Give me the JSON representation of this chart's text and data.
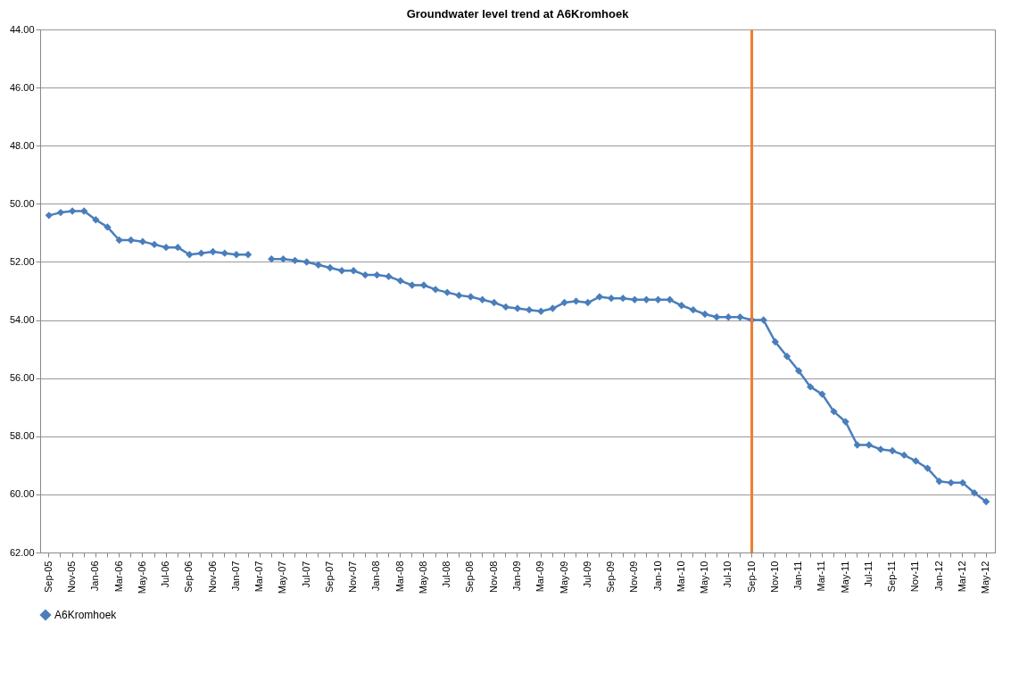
{
  "chart_data": {
    "type": "line",
    "title": "Groundwater level trend at A6Kromhoek",
    "categories": [
      "Sep-05",
      null,
      "Nov-05",
      null,
      "Jan-06",
      null,
      "Mar-06",
      null,
      "May-06",
      null,
      "Jul-06",
      null,
      "Sep-06",
      null,
      "Nov-06",
      null,
      "Jan-07",
      null,
      "Mar-07",
      null,
      "May-07",
      null,
      "Jul-07",
      null,
      "Sep-07",
      null,
      "Nov-07",
      null,
      "Jan-08",
      null,
      "Mar-08",
      null,
      "May-08",
      null,
      "Jul-08",
      null,
      "Sep-08",
      null,
      "Nov-08",
      null,
      "Jan-09",
      null,
      "Mar-09",
      null,
      "May-09",
      null,
      "Jul-09",
      null,
      "Sep-09",
      null,
      "Nov-09",
      null,
      "Jan-10",
      null,
      "Mar-10",
      null,
      "May-10",
      null,
      "Jul-10",
      null,
      "Sep-10",
      null,
      "Nov-10",
      null,
      "Jan-11",
      null,
      "Mar-11",
      null,
      "May-11",
      null,
      "Jul-11",
      null,
      "Sep-11",
      null,
      "Nov-11",
      null,
      "Jan-12",
      null,
      "Mar-12",
      null,
      "May-12"
    ],
    "series": [
      {
        "name": "A6Kromhoek",
        "color": "#4a7ebb",
        "values": [
          50.4,
          50.3,
          50.25,
          50.25,
          50.55,
          50.8,
          51.25,
          51.25,
          51.3,
          51.4,
          51.5,
          51.5,
          51.75,
          51.7,
          51.65,
          51.7,
          51.75,
          51.75,
          null,
          51.9,
          51.9,
          51.95,
          52.0,
          52.1,
          52.2,
          52.3,
          52.3,
          52.45,
          52.45,
          52.5,
          52.65,
          52.8,
          52.8,
          52.95,
          53.05,
          53.15,
          53.2,
          53.3,
          53.4,
          53.55,
          53.6,
          53.65,
          53.7,
          53.6,
          53.4,
          53.35,
          53.4,
          53.2,
          53.25,
          53.25,
          53.3,
          53.3,
          53.3,
          53.3,
          53.5,
          53.65,
          53.8,
          53.9,
          53.9,
          53.9,
          54.0,
          54.0,
          54.75,
          55.25,
          55.75,
          56.3,
          56.55,
          57.15,
          57.5,
          58.3,
          58.3,
          58.45,
          58.5,
          58.65,
          58.85,
          59.1,
          59.55,
          59.6,
          59.6,
          59.95,
          60.25
        ]
      }
    ],
    "ylim": [
      62,
      44
    ],
    "yticks": [
      {
        "value": 44,
        "label": "44.00"
      },
      {
        "value": 46,
        "label": "46.00"
      },
      {
        "value": 48,
        "label": "48.00"
      },
      {
        "value": 50,
        "label": "50.00"
      },
      {
        "value": 52,
        "label": "52.00"
      },
      {
        "value": 54,
        "label": "54.00"
      },
      {
        "value": 56,
        "label": "56.00"
      },
      {
        "value": 58,
        "label": "58.00"
      },
      {
        "value": 60,
        "label": "60.00"
      },
      {
        "value": 62,
        "label": "62.00"
      }
    ],
    "grid": "y",
    "legend": "bottom",
    "marker": "diamond",
    "line_style": "solid",
    "ref_lines": [
      {
        "axis": "x",
        "value": "Sep-10",
        "color": "#ed7d31"
      }
    ]
  }
}
